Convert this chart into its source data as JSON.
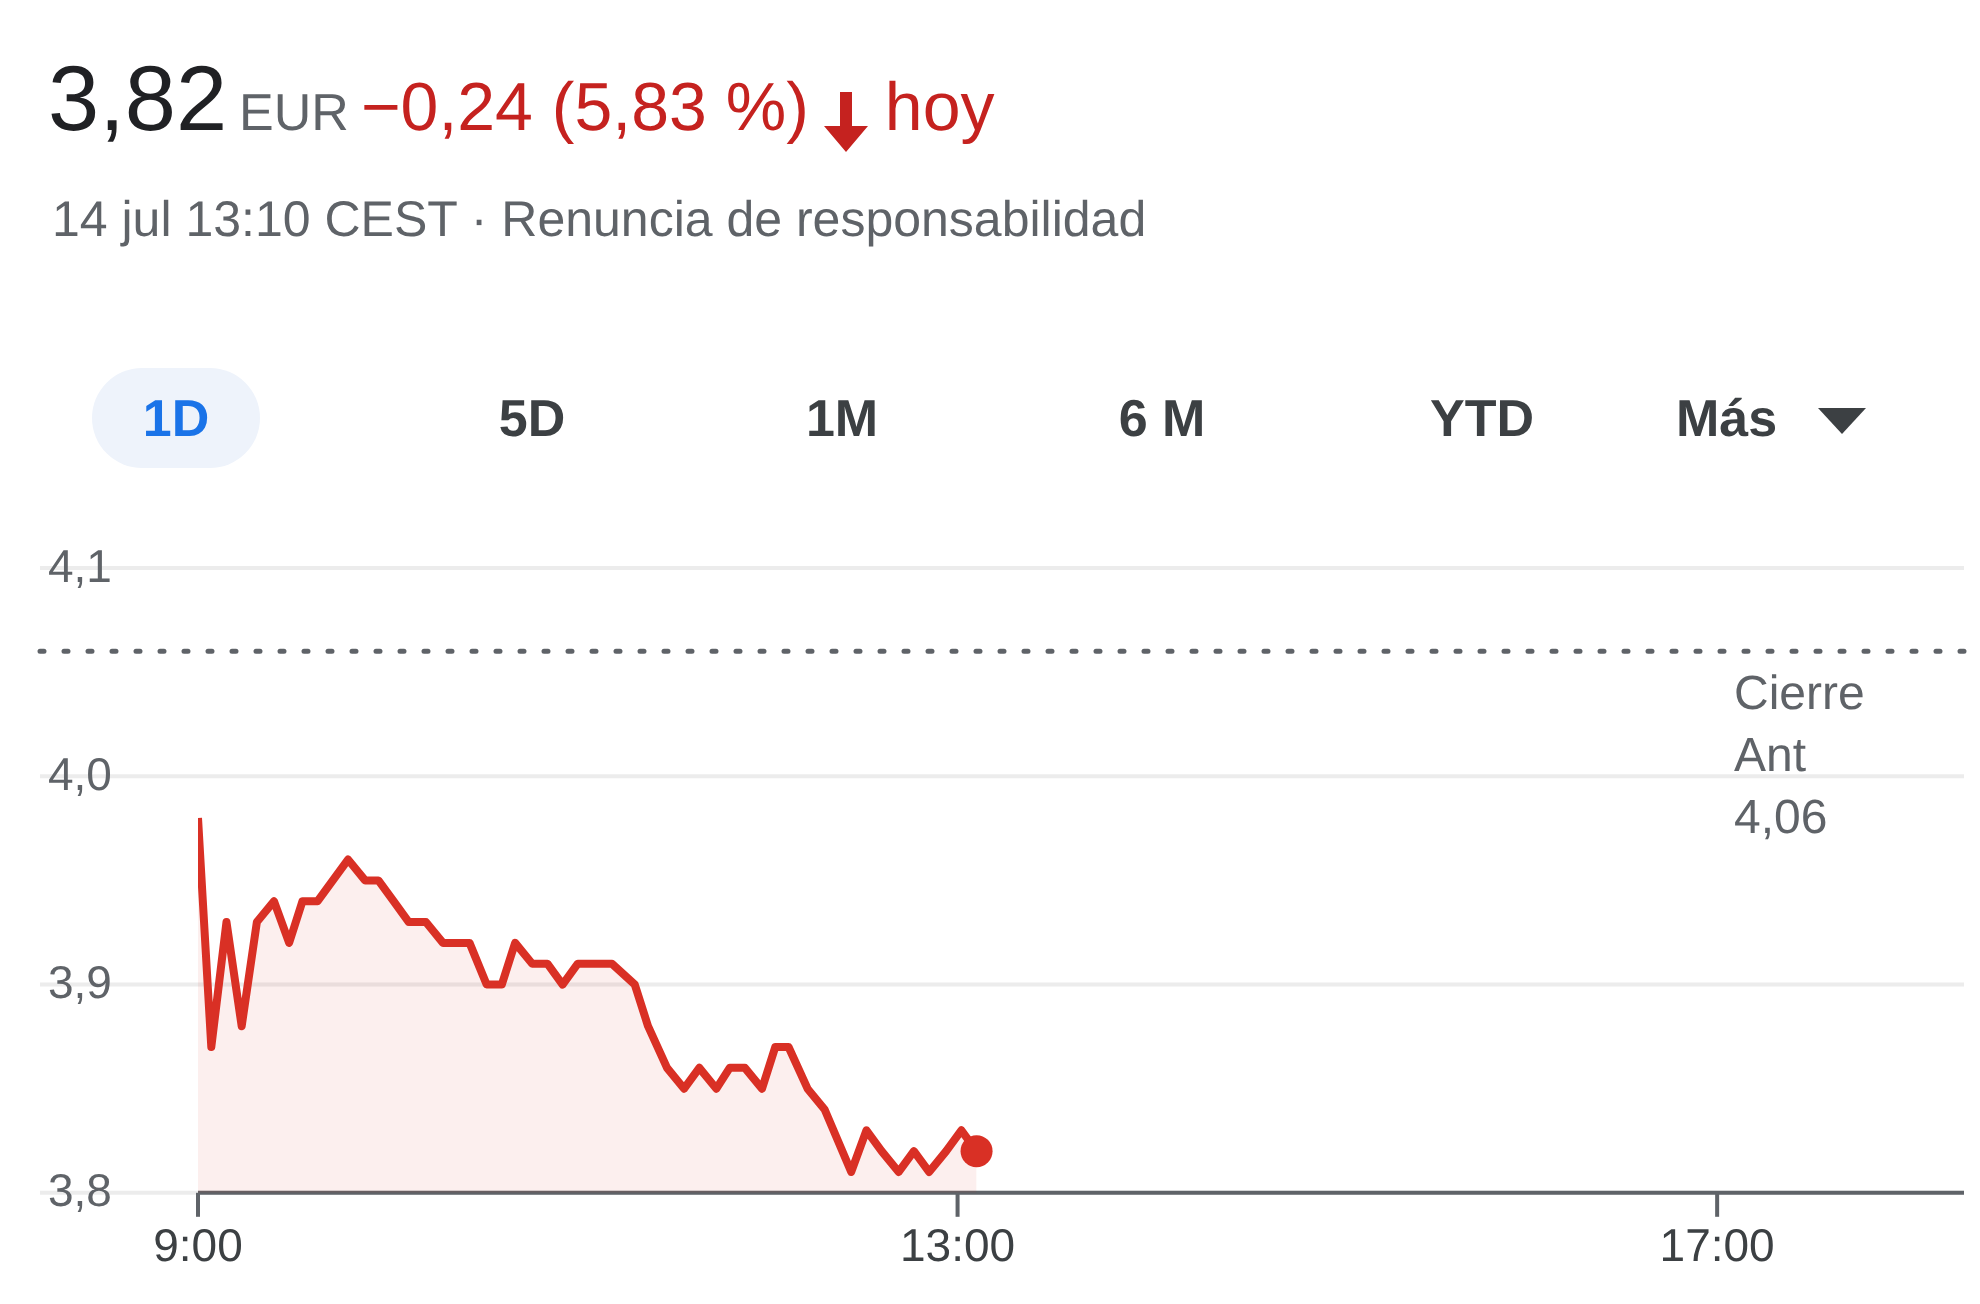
{
  "chart_data": {
    "type": "area",
    "title": "3,82",
    "subtitle": "14 jul 13:10 CEST · Renuncia de responsabilidad",
    "annotations": [
      "EUR",
      "−0,24 (5,83 %)",
      "hoy",
      "1D",
      "5D",
      "1M",
      "6 M",
      "YTD",
      "Más"
    ],
    "x": [
      9.0,
      9.07,
      9.15,
      9.23,
      9.31,
      9.4,
      9.48,
      9.55,
      9.63,
      9.79,
      9.88,
      9.95,
      10.03,
      10.11,
      10.2,
      10.29,
      10.36,
      10.43,
      10.52,
      10.6,
      10.67,
      10.76,
      10.84,
      10.92,
      11.0,
      11.07,
      11.18,
      11.3,
      11.37,
      11.47,
      11.56,
      11.64,
      11.73,
      11.8,
      11.88,
      11.97,
      12.04,
      12.11,
      12.21,
      12.3,
      12.44,
      12.52,
      12.6,
      12.69,
      12.77,
      12.85,
      12.94,
      13.02,
      13.1
    ],
    "series": [
      {
        "color": "#d93025",
        "values": [
          3.98,
          3.87,
          3.93,
          3.88,
          3.93,
          3.94,
          3.92,
          3.94,
          3.94,
          3.96,
          3.95,
          3.95,
          3.94,
          3.93,
          3.93,
          3.92,
          3.92,
          3.92,
          3.9,
          3.9,
          3.92,
          3.91,
          3.91,
          3.9,
          3.91,
          3.91,
          3.91,
          3.9,
          3.88,
          3.86,
          3.85,
          3.86,
          3.85,
          3.86,
          3.86,
          3.85,
          3.87,
          3.87,
          3.85,
          3.84,
          3.81,
          3.83,
          3.82,
          3.81,
          3.82,
          3.81,
          3.82,
          3.83,
          3.82
        ]
      }
    ],
    "xlim": [
      9,
      18.3
    ],
    "xticks": [
      {
        "value": 9,
        "label": "9:00"
      },
      {
        "value": 13,
        "label": "13:00"
      },
      {
        "value": 17,
        "label": "17:00"
      }
    ],
    "ylim": [
      3.8,
      4.1
    ],
    "yticks": [
      {
        "value": 3.8,
        "label": "3,8"
      },
      {
        "value": 3.9,
        "label": "3,9"
      },
      {
        "value": 4.0,
        "label": "4,0"
      },
      {
        "value": 4.1,
        "label": "4,1"
      }
    ],
    "ref_lines": [
      {
        "axis": "y",
        "value": 4.06,
        "label": "Cierre Ant 4,06",
        "color": "#5f6368",
        "line_style": "dotted"
      }
    ],
    "grid": "y",
    "legend": false
  }
}
